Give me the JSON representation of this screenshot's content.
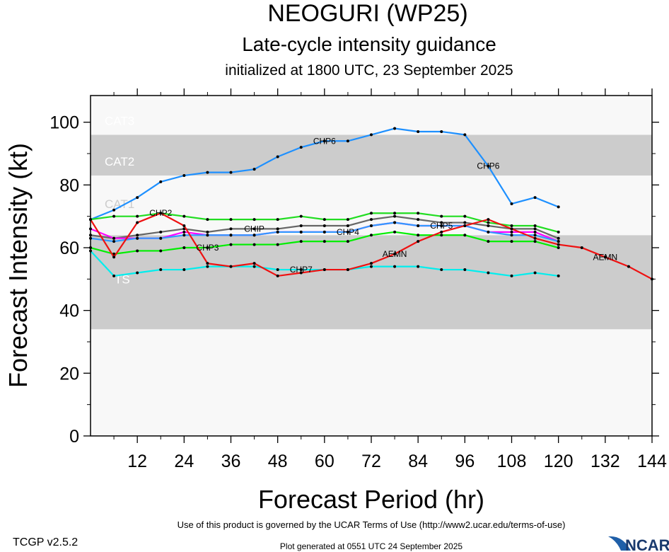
{
  "chart_data": {
    "type": "line",
    "title": "NEOGURI (WP25)",
    "subtitle": "Late-cycle intensity guidance",
    "subtitle2": "initialized at 1800 UTC, 23 September 2025",
    "xlabel": "Forecast Period (hr)",
    "ylabel": "Forecast Intensity (kt)",
    "xlim": [
      0,
      144
    ],
    "ylim": [
      0,
      108.5
    ],
    "xticks": [
      12,
      24,
      36,
      48,
      60,
      72,
      84,
      96,
      108,
      120,
      132,
      144
    ],
    "yticks": [
      0,
      20,
      40,
      60,
      80,
      100
    ],
    "bands": [
      {
        "label": "TS",
        "from": 34,
        "to": 64,
        "color": "#cccccc"
      },
      {
        "label": "CAT1",
        "from": 64,
        "to": 83,
        "color": "#f8f8f8"
      },
      {
        "label": "CAT2",
        "from": 83,
        "to": 96,
        "color": "#cccccc"
      },
      {
        "label": "CAT3",
        "from": 96,
        "to": 108.5,
        "color": "#f8f8f8"
      }
    ],
    "series": [
      {
        "name": "CHP6",
        "color": "#1e90ff",
        "x": [
          0,
          6,
          12,
          18,
          24,
          30,
          36,
          42,
          48,
          54,
          60,
          66,
          72,
          78,
          84,
          90,
          96,
          102,
          108,
          114,
          120
        ],
        "values": [
          69,
          72,
          76,
          81,
          83,
          84,
          84,
          85,
          89,
          92,
          94,
          94,
          96,
          98,
          97,
          97,
          96,
          86,
          74,
          76,
          73
        ]
      },
      {
        "name": "CHP2",
        "color": "#22dd22",
        "x": [
          0,
          6,
          12,
          18,
          24,
          30,
          36,
          42,
          48,
          54,
          60,
          66,
          72,
          78,
          84,
          90,
          96,
          102,
          108,
          114,
          120
        ],
        "values": [
          69,
          70,
          70,
          71,
          70,
          69,
          69,
          69,
          69,
          70,
          69,
          69,
          71,
          71,
          71,
          70,
          70,
          68,
          67,
          67,
          65
        ]
      },
      {
        "name": "CHIP",
        "color": "#666666",
        "x": [
          0,
          6,
          12,
          18,
          24,
          30,
          36,
          42,
          48,
          54,
          60,
          66,
          72,
          78,
          84,
          90,
          96,
          102,
          108,
          114,
          120
        ],
        "values": [
          64,
          63,
          64,
          65,
          66,
          65,
          66,
          66,
          66,
          67,
          67,
          67,
          69,
          70,
          69,
          68,
          68,
          67,
          66,
          66,
          63
        ]
      },
      {
        "name": "CHP4",
        "color": "#ff00ff",
        "x": [
          0,
          6,
          12,
          18,
          24,
          30,
          36,
          42,
          48,
          54,
          60,
          66,
          72,
          78,
          84,
          90,
          96,
          102,
          108,
          114,
          120
        ],
        "values": [
          66,
          63,
          63,
          63,
          65,
          64,
          64,
          64,
          65,
          65,
          65,
          65,
          67,
          68,
          67,
          67,
          67,
          65,
          65,
          65,
          62
        ]
      },
      {
        "name": "CHP5",
        "color": "#3399ff",
        "x": [
          0,
          6,
          12,
          18,
          24,
          30,
          36,
          42,
          48,
          54,
          60,
          66,
          72,
          78,
          84,
          90,
          96,
          102,
          108,
          114,
          120
        ],
        "values": [
          63,
          62,
          63,
          63,
          64,
          64,
          64,
          64,
          65,
          65,
          65,
          65,
          67,
          68,
          67,
          67,
          67,
          65,
          64,
          64,
          62
        ]
      },
      {
        "name": "CHP3",
        "color": "#00ee00",
        "x": [
          0,
          6,
          12,
          18,
          24,
          30,
          36,
          42,
          48,
          54,
          60,
          66,
          72,
          78,
          84,
          90,
          96,
          102,
          108,
          114,
          120
        ],
        "values": [
          60,
          58,
          59,
          59,
          60,
          60,
          61,
          61,
          61,
          62,
          62,
          62,
          64,
          65,
          64,
          64,
          64,
          62,
          62,
          62,
          60
        ]
      },
      {
        "name": "CHP7",
        "color": "#00eeee",
        "x": [
          0,
          6,
          12,
          18,
          24,
          30,
          36,
          42,
          48,
          54,
          60,
          66,
          72,
          78,
          84,
          90,
          96,
          102,
          108,
          114,
          120
        ],
        "values": [
          59,
          51,
          52,
          53,
          53,
          54,
          54,
          54,
          53,
          53,
          53,
          53,
          54,
          54,
          54,
          53,
          53,
          52,
          51,
          52,
          51
        ]
      },
      {
        "name": "AEMN",
        "color": "#ee1111",
        "x": [
          0,
          6,
          12,
          18,
          24,
          30,
          36,
          42,
          48,
          54,
          60,
          66,
          72,
          78,
          84,
          90,
          96,
          102,
          108,
          114,
          120,
          126,
          132,
          138,
          144
        ],
        "values": [
          69,
          57,
          68,
          71,
          67,
          55,
          54,
          55,
          51,
          52,
          53,
          53,
          55,
          58,
          62,
          65,
          67,
          69,
          66,
          63,
          61,
          60,
          57,
          54,
          50
        ]
      }
    ]
  },
  "footer": {
    "terms": "Use of this product is governed by the UCAR Terms of Use (http://www2.ucar.edu/terms-of-use)",
    "version": "TCGP v2.5.2",
    "generated": "Plot generated at 0551 UTC   24 September 2025",
    "logo_text": "NCAR"
  }
}
